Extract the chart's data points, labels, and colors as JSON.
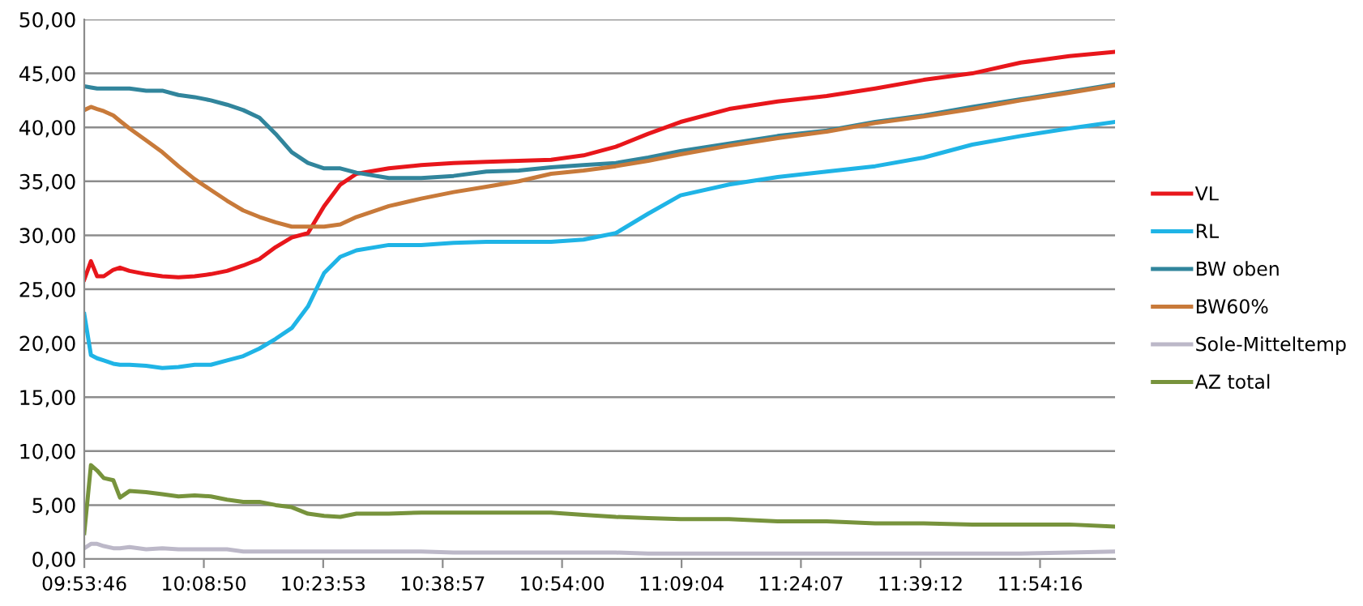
{
  "chart_data": {
    "type": "line",
    "x": [
      9.896,
      9.91,
      9.923,
      9.937,
      9.957,
      9.971,
      9.991,
      10.026,
      10.06,
      10.094,
      10.128,
      10.162,
      10.196,
      10.23,
      10.264,
      10.298,
      10.332,
      10.366,
      10.4,
      10.434,
      10.468,
      10.536,
      10.604,
      10.672,
      10.741,
      10.809,
      10.877,
      10.945,
      11.013,
      11.081,
      11.149,
      11.251,
      11.353,
      11.456,
      11.558,
      11.66,
      11.762,
      11.864,
      11.966,
      12.062
    ],
    "series": [
      {
        "name": "VL",
        "color": "#e8161b",
        "values": [
          25.9,
          27.6,
          26.2,
          26.2,
          26.8,
          27.0,
          26.7,
          26.4,
          26.2,
          26.1,
          26.2,
          26.4,
          26.7,
          27.2,
          27.8,
          28.9,
          29.8,
          30.2,
          32.7,
          34.7,
          35.7,
          36.2,
          36.5,
          36.7,
          36.8,
          36.9,
          37.0,
          37.4,
          38.2,
          39.4,
          40.5,
          41.7,
          42.4,
          42.9,
          43.6,
          44.4,
          45.0,
          46.0,
          46.6,
          47.0
        ]
      },
      {
        "name": "RL",
        "color": "#1fb4e6",
        "values": [
          22.7,
          18.9,
          18.6,
          18.4,
          18.1,
          18.0,
          18.0,
          17.9,
          17.7,
          17.8,
          18.0,
          18.0,
          18.4,
          18.8,
          19.5,
          20.4,
          21.4,
          23.4,
          26.5,
          28.0,
          28.6,
          29.1,
          29.1,
          29.3,
          29.4,
          29.4,
          29.4,
          29.6,
          30.2,
          32.0,
          33.7,
          34.7,
          35.4,
          35.9,
          36.4,
          37.2,
          38.4,
          39.2,
          39.9,
          40.5
        ]
      },
      {
        "name": "BW oben",
        "color": "#31859c",
        "values": [
          43.8,
          43.7,
          43.6,
          43.6,
          43.6,
          43.6,
          43.6,
          43.4,
          43.4,
          43.0,
          42.8,
          42.5,
          42.1,
          41.6,
          40.9,
          39.4,
          37.7,
          36.7,
          36.2,
          36.2,
          35.8,
          35.3,
          35.3,
          35.5,
          35.9,
          36.0,
          36.3,
          36.5,
          36.7,
          37.2,
          37.8,
          38.5,
          39.2,
          39.7,
          40.5,
          41.1,
          41.9,
          42.6,
          43.3,
          44.0
        ]
      },
      {
        "name": "BW60%",
        "color": "#c87a3a",
        "values": [
          41.6,
          41.9,
          41.7,
          41.5,
          41.1,
          40.6,
          39.9,
          38.8,
          37.7,
          36.4,
          35.2,
          34.2,
          33.2,
          32.3,
          31.7,
          31.2,
          30.8,
          30.8,
          30.8,
          31.0,
          31.7,
          32.7,
          33.4,
          34.0,
          34.5,
          35.0,
          35.7,
          36.0,
          36.4,
          36.9,
          37.5,
          38.3,
          39.0,
          39.6,
          40.4,
          41.0,
          41.7,
          42.5,
          43.2,
          43.9
        ]
      },
      {
        "name": "Sole-Mitteltemp",
        "color": "#bcb8c8",
        "values": [
          1.0,
          1.4,
          1.4,
          1.2,
          1.0,
          1.0,
          1.1,
          0.9,
          1.0,
          0.9,
          0.9,
          0.9,
          0.9,
          0.7,
          0.7,
          0.7,
          0.7,
          0.7,
          0.7,
          0.7,
          0.7,
          0.7,
          0.7,
          0.6,
          0.6,
          0.6,
          0.6,
          0.6,
          0.6,
          0.5,
          0.5,
          0.5,
          0.5,
          0.5,
          0.5,
          0.5,
          0.5,
          0.5,
          0.6,
          0.7
        ]
      },
      {
        "name": "AZ total",
        "color": "#77933c",
        "values": [
          2.4,
          8.7,
          8.2,
          7.5,
          7.3,
          5.7,
          6.3,
          6.2,
          6.0,
          5.8,
          5.9,
          5.8,
          5.5,
          5.3,
          5.3,
          5.0,
          4.8,
          4.2,
          4.0,
          3.9,
          4.2,
          4.2,
          4.3,
          4.3,
          4.3,
          4.3,
          4.3,
          4.1,
          3.9,
          3.8,
          3.7,
          3.7,
          3.5,
          3.5,
          3.3,
          3.3,
          3.2,
          3.2,
          3.2,
          3.0
        ]
      }
    ],
    "xlim": [
      9.896,
      12.062
    ],
    "xticks": [
      {
        "value": 9.89611,
        "label": "09:53:46"
      },
      {
        "value": 10.14722,
        "label": "10:08:50"
      },
      {
        "value": 10.39806,
        "label": "10:23:53"
      },
      {
        "value": 10.64917,
        "label": "10:38:57"
      },
      {
        "value": 10.9,
        "label": "10:54:00"
      },
      {
        "value": 11.15111,
        "label": "11:09:04"
      },
      {
        "value": 11.40194,
        "label": "11:24:07"
      },
      {
        "value": 11.65333,
        "label": "11:39:12"
      },
      {
        "value": 11.90444,
        "label": "11:54:16"
      }
    ],
    "ylim": [
      0,
      50
    ],
    "yticks": [
      {
        "value": 0,
        "label": "0,00"
      },
      {
        "value": 5,
        "label": "5,00"
      },
      {
        "value": 10,
        "label": "10,00"
      },
      {
        "value": 15,
        "label": "15,00"
      },
      {
        "value": 20,
        "label": "20,00"
      },
      {
        "value": 25,
        "label": "25,00"
      },
      {
        "value": 30,
        "label": "30,00"
      },
      {
        "value": 35,
        "label": "35,00"
      },
      {
        "value": 40,
        "label": "40,00"
      },
      {
        "value": 45,
        "label": "45,00"
      },
      {
        "value": 50,
        "label": "50,00"
      }
    ],
    "grid": "y",
    "legend": "right",
    "marker": "none",
    "line_style": "solid"
  }
}
